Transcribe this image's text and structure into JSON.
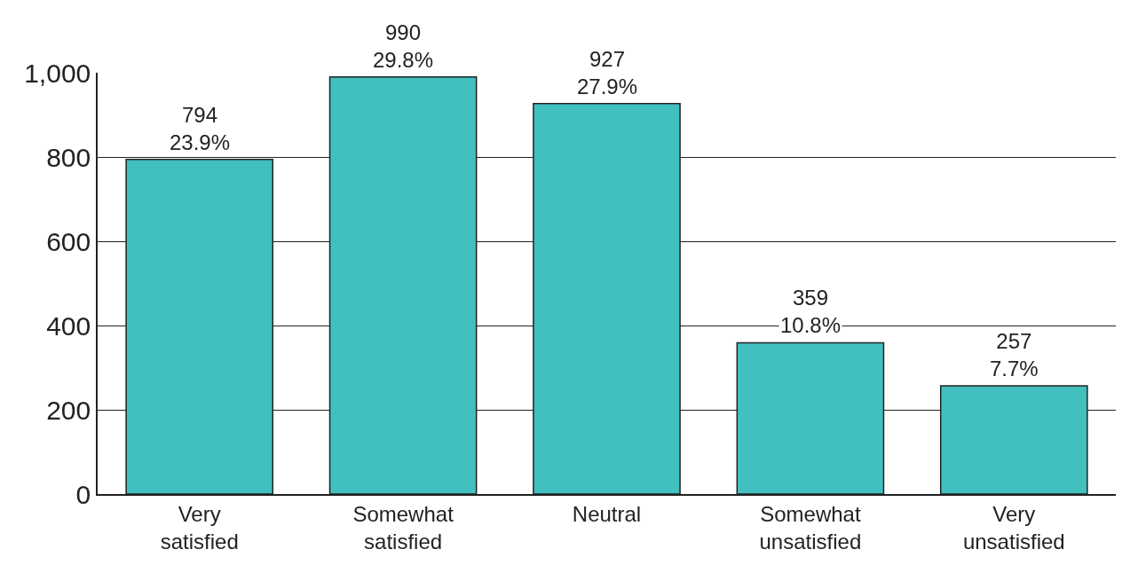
{
  "chart_data": {
    "type": "bar",
    "categories": [
      "Very\nsatisfied",
      "Somewhat\nsatisfied",
      "Neutral",
      "Somewhat\nunsatisfied",
      "Very\nunsatisfied"
    ],
    "values": [
      794,
      990,
      927,
      359,
      257
    ],
    "value_labels": [
      "794\n23.9%",
      "990\n29.8%",
      "927\n27.9%",
      "359\n10.8%",
      "257\n7.7%"
    ],
    "color": "#42bfbf",
    "ylim": [
      0,
      1000
    ],
    "yticks": [
      0,
      200,
      400,
      600,
      800,
      {
        "value": 1000,
        "label": "1,000"
      }
    ],
    "grid": "y"
  }
}
